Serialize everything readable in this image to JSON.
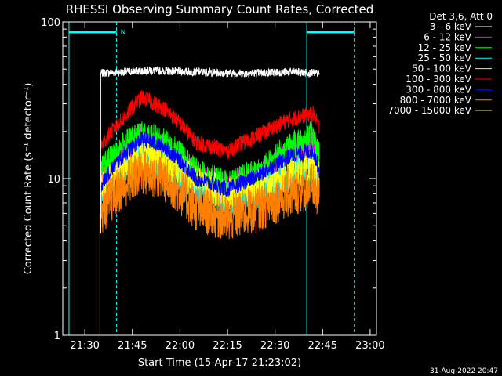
{
  "chart_data": {
    "type": "line",
    "title": "RHESSI Observing Summary Count Rates, Corrected",
    "xlabel": "Start Time (15-Apr-17 21:23:02)",
    "ylabel": "Corrected Count Rate (s⁻¹ detector⁻¹)",
    "yscale": "log",
    "ylim": [
      1,
      100
    ],
    "xlim_minutes": [
      21.383,
      23.0
    ],
    "x_ticks": [
      {
        "label": "21:30",
        "minutes": 1290
      },
      {
        "label": "21:45",
        "minutes": 1305
      },
      {
        "label": "22:00",
        "minutes": 1320
      },
      {
        "label": "22:15",
        "minutes": 1335
      },
      {
        "label": "22:30",
        "minutes": 1350
      },
      {
        "label": "22:45",
        "minutes": 1365
      },
      {
        "label": "23:00",
        "minutes": 1380
      }
    ],
    "y_ticks": [
      {
        "label": "100",
        "value": 100
      },
      {
        "label": "10",
        "value": 10
      },
      {
        "label": "1",
        "value": 1
      }
    ],
    "legend_title": "Det 3,6, Att 0",
    "legend_position": "top-right (outside plot)",
    "series": [
      {
        "name": "3 - 6 keV",
        "color": "#ffffff",
        "x": [
          "21:35",
          "21:50",
          "22:05",
          "22:20",
          "22:35",
          "22:44"
        ],
        "values": [
          47,
          49,
          48,
          47,
          48,
          47
        ]
      },
      {
        "name": "6 - 12 keV",
        "color": "#ff00ff",
        "x": [
          "21:35",
          "21:42",
          "21:48",
          "21:55",
          "22:05",
          "22:15",
          "22:25",
          "22:35",
          "22:42",
          "22:44"
        ],
        "values": [
          10,
          14,
          17,
          15,
          10,
          8.5,
          10,
          14,
          16,
          12
        ]
      },
      {
        "name": "12 - 25 keV",
        "color": "#00ff00",
        "x": [
          "21:35",
          "21:42",
          "21:48",
          "21:55",
          "22:05",
          "22:15",
          "22:25",
          "22:35",
          "22:42",
          "22:44"
        ],
        "values": [
          11,
          16,
          19,
          17,
          11,
          9,
          11,
          16,
          19,
          14
        ]
      },
      {
        "name": "25 - 50 keV",
        "color": "#00ffff",
        "x": [
          "21:35",
          "21:42",
          "21:48",
          "21:55",
          "22:05",
          "22:15",
          "22:25",
          "22:35",
          "22:42",
          "22:44"
        ],
        "values": [
          8,
          11,
          14,
          12,
          9,
          7.5,
          8.5,
          10.5,
          12,
          9
        ]
      },
      {
        "name": "50 - 100 keV",
        "color": "#ffff00",
        "x": [
          "21:35",
          "21:42",
          "21:48",
          "21:55",
          "22:05",
          "22:15",
          "22:25",
          "22:35",
          "22:42",
          "22:44"
        ],
        "values": [
          9,
          12,
          14,
          13,
          9.5,
          8,
          9,
          11,
          12,
          10
        ]
      },
      {
        "name": "100 - 300 keV",
        "color": "#ff0000",
        "x": [
          "21:35",
          "21:42",
          "21:48",
          "21:55",
          "22:05",
          "22:15",
          "22:25",
          "22:35",
          "22:42",
          "22:44"
        ],
        "values": [
          16,
          24,
          33,
          28,
          17,
          15,
          19,
          24,
          26,
          21
        ]
      },
      {
        "name": "300 - 800 keV",
        "color": "#0000ff",
        "x": [
          "21:35",
          "21:42",
          "21:48",
          "21:55",
          "22:05",
          "22:15",
          "22:25",
          "22:35",
          "22:42",
          "22:44"
        ],
        "values": [
          9,
          14,
          18,
          16,
          10,
          8.5,
          10.5,
          14,
          15,
          11
        ]
      },
      {
        "name": "800 - 7000 keV",
        "color": "#ff8000",
        "x": [
          "21:35",
          "21:42",
          "21:48",
          "21:55",
          "22:05",
          "22:15",
          "22:25",
          "22:35",
          "22:42",
          "22:44"
        ],
        "values": [
          6,
          9,
          11,
          10,
          6.5,
          5.5,
          6.5,
          8,
          9,
          7
        ]
      },
      {
        "name": "7000 - 15000 keV",
        "color": "#a0a000",
        "x": [],
        "values": []
      }
    ],
    "markers": {
      "n_label": "N",
      "vertical_lines": [
        "21:25",
        "21:40",
        "22:40",
        "22:55"
      ]
    },
    "timestamp": "31-Aug-2022 20:47"
  }
}
